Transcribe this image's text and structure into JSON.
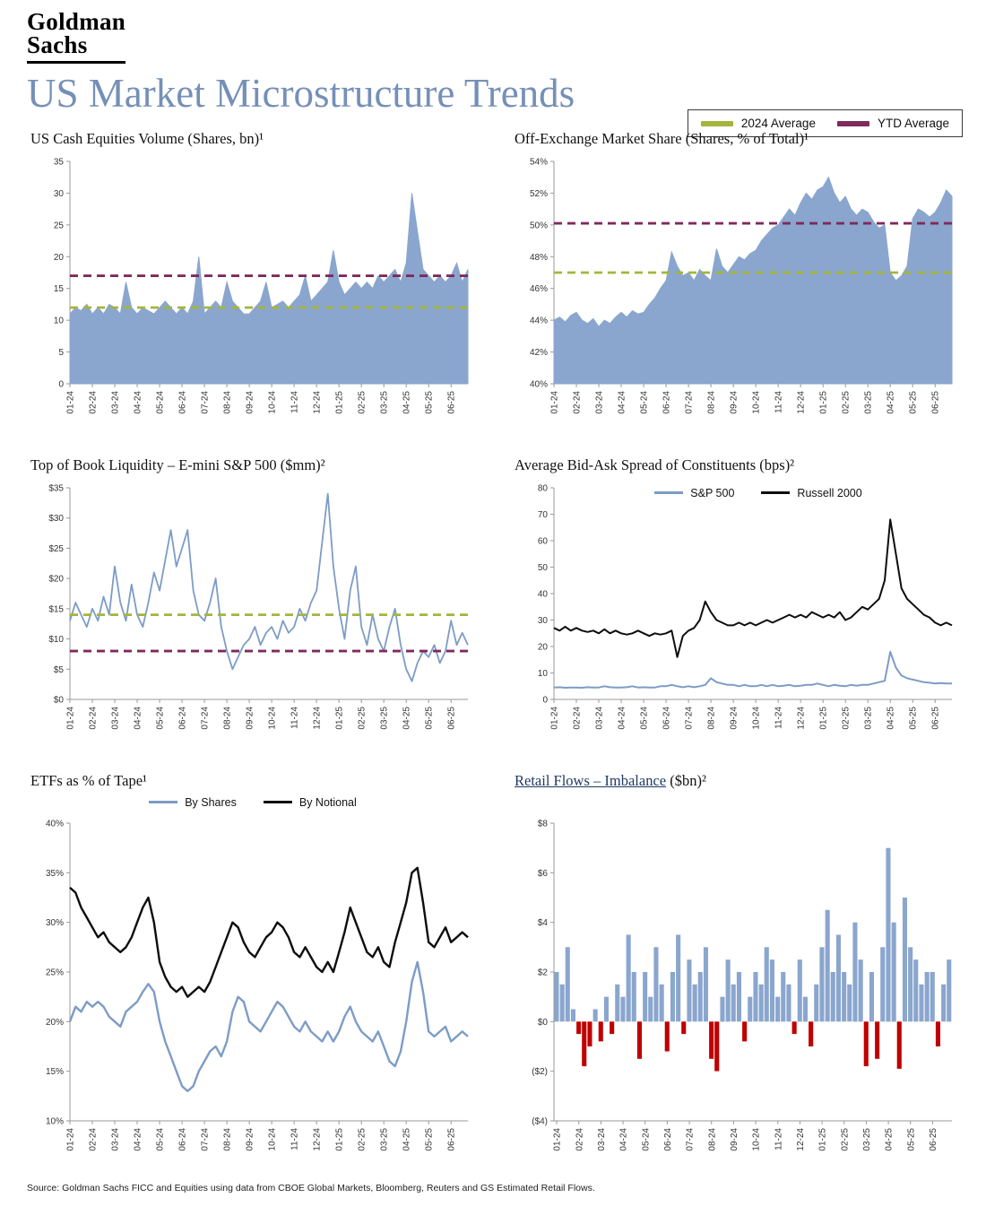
{
  "brand": {
    "line1": "Goldman",
    "line2": "Sachs"
  },
  "page_title": "US Market Microstructure Trends",
  "legend": {
    "items": [
      {
        "label": "2024 Average",
        "color": "#a4b53c"
      },
      {
        "label": "YTD Average",
        "color": "#7e2a5b"
      }
    ]
  },
  "source": "Source: Goldman Sachs FICC and Equities using data from CBOE Global Markets, Bloomberg, Reuters and GS Estimated Retail Flows.",
  "months": [
    "01-24",
    "02-24",
    "03-24",
    "04-24",
    "05-24",
    "06-24",
    "07-24",
    "08-24",
    "09-24",
    "10-24",
    "11-24",
    "12-24",
    "01-25",
    "02-25",
    "03-25",
    "04-25",
    "05-25",
    "06-25"
  ],
  "chart_data": [
    {
      "type": "area",
      "title": "US Cash Equities Volume (Shares, bn)¹",
      "ylim": [
        0,
        35
      ],
      "yticks": [
        0,
        5,
        10,
        15,
        20,
        25,
        30,
        35
      ],
      "ytick_labels": [
        "0",
        "5",
        "10",
        "15",
        "20",
        "25",
        "30",
        "35"
      ],
      "ref_lines": [
        {
          "name": "2024 Average",
          "value": 12,
          "color": "#a4b53c"
        },
        {
          "name": "YTD Average",
          "value": 17,
          "color": "#7e2a5b"
        }
      ],
      "series": [
        {
          "name": "US Cash Equities Volume",
          "color": "#8aa6ce",
          "values": [
            11,
            12,
            11.5,
            12.5,
            11,
            12,
            11,
            12.5,
            12,
            11,
            16,
            12,
            11,
            12,
            11.5,
            11,
            12,
            13,
            12,
            11,
            12,
            11,
            13,
            20,
            11,
            12,
            13,
            12,
            16,
            13,
            12,
            11,
            11,
            12,
            13,
            16,
            12,
            12.5,
            13,
            12,
            13,
            14,
            17,
            13,
            14,
            15,
            16,
            21,
            16,
            14,
            15,
            16,
            15,
            16,
            15,
            17,
            16,
            17,
            18,
            16,
            19,
            30,
            24,
            18,
            17,
            16,
            17,
            16,
            17,
            19,
            16,
            18
          ]
        }
      ]
    },
    {
      "type": "area",
      "title": "Off-Exchange Market Share (Shares, % of Total)¹",
      "ylim": [
        40,
        54
      ],
      "yticks": [
        40,
        42,
        44,
        46,
        48,
        50,
        52,
        54
      ],
      "ytick_labels": [
        "40%",
        "42%",
        "44%",
        "46%",
        "48%",
        "50%",
        "52%",
        "54%"
      ],
      "ref_lines": [
        {
          "name": "2024 Average",
          "value": 47,
          "color": "#a4b53c"
        },
        {
          "name": "YTD Average",
          "value": 50.1,
          "color": "#7e2a5b"
        }
      ],
      "series": [
        {
          "name": "Off-Exchange Market Share",
          "color": "#8aa6ce",
          "values": [
            44,
            44.2,
            43.9,
            44.3,
            44.5,
            44,
            43.8,
            44.1,
            43.6,
            44,
            43.8,
            44.2,
            44.5,
            44.2,
            44.6,
            44.4,
            44.5,
            45,
            45.4,
            46,
            46.5,
            48.3,
            47.4,
            46.8,
            47,
            46.5,
            47.2,
            46.8,
            46.5,
            48.5,
            47.4,
            47,
            47.5,
            48,
            47.8,
            48.2,
            48.4,
            49,
            49.4,
            49.8,
            50,
            50.5,
            51,
            50.6,
            51.4,
            52,
            51.6,
            52.2,
            52.4,
            53,
            52,
            51.4,
            51.8,
            51,
            50.6,
            51,
            50.8,
            50.2,
            49.8,
            50,
            47,
            46.5,
            46.8,
            47.4,
            50.4,
            51,
            50.8,
            50.5,
            50.8,
            51.4,
            52.2,
            51.8
          ]
        }
      ]
    },
    {
      "type": "line",
      "title": "Top of Book Liquidity – E-mini S&P 500 ($mm)²",
      "ylim": [
        0,
        35
      ],
      "yticks": [
        0,
        5,
        10,
        15,
        20,
        25,
        30,
        35
      ],
      "ytick_labels": [
        "$0",
        "$5",
        "$10",
        "$15",
        "$20",
        "$25",
        "$30",
        "$35"
      ],
      "ref_lines": [
        {
          "name": "2024 Average",
          "value": 14,
          "color": "#a4b53c"
        },
        {
          "name": "YTD Average",
          "value": 8,
          "color": "#7e2a5b"
        }
      ],
      "series": [
        {
          "name": "E-mini S&P 500 Top of Book",
          "color": "#7d9cc6",
          "width": 1.8,
          "values": [
            13,
            16,
            14,
            12,
            15,
            13,
            17,
            14,
            22,
            16,
            13,
            19,
            14,
            12,
            16,
            21,
            18,
            23,
            28,
            22,
            25,
            28,
            18,
            14,
            13,
            16,
            20,
            12,
            8,
            5,
            7,
            9,
            10,
            12,
            9,
            11,
            12,
            10,
            13,
            11,
            12,
            15,
            13,
            16,
            18,
            26,
            34,
            22,
            15,
            10,
            18,
            22,
            12,
            9,
            14,
            10,
            8,
            12,
            15,
            9,
            5,
            3,
            6,
            8,
            7,
            9,
            6,
            8,
            13,
            9,
            11,
            9
          ]
        }
      ]
    },
    {
      "type": "line",
      "title": "Average Bid-Ask Spread of Constituents (bps)²",
      "ylim": [
        0,
        80
      ],
      "yticks": [
        0,
        10,
        20,
        30,
        40,
        50,
        60,
        70,
        80
      ],
      "ytick_labels": [
        "0",
        "10",
        "20",
        "30",
        "40",
        "50",
        "60",
        "70",
        "80"
      ],
      "ref_lines": [],
      "series": [
        {
          "name": "S&P 500",
          "color": "#7d9cc6",
          "width": 2,
          "values": [
            4.5,
            4.6,
            4.4,
            4.5,
            4.5,
            4.4,
            4.6,
            4.5,
            4.5,
            5,
            4.6,
            4.5,
            4.5,
            4.6,
            5,
            4.5,
            4.6,
            4.5,
            4.5,
            5,
            5,
            5.5,
            5,
            4.6,
            5,
            4.6,
            5,
            5.5,
            8,
            6.5,
            6,
            5.5,
            5.5,
            5,
            5.5,
            5,
            5,
            5.5,
            5,
            5.5,
            5,
            5.2,
            5.5,
            5,
            5.2,
            5.5,
            5.5,
            6,
            5.5,
            5,
            5.5,
            5.2,
            5,
            5.5,
            5.2,
            5.5,
            5.5,
            6,
            6.5,
            7,
            18,
            12,
            9,
            8,
            7.5,
            7,
            6.5,
            6.3,
            6,
            6.2,
            6,
            6
          ]
        },
        {
          "name": "Russell 2000",
          "color": "#0d0d0d",
          "width": 2,
          "values": [
            27,
            26,
            27.5,
            26,
            27,
            26,
            25.5,
            26,
            25,
            26.5,
            25,
            26,
            25,
            24.5,
            25,
            26,
            25,
            24,
            25,
            24.5,
            25,
            26,
            16,
            24,
            26,
            27,
            30,
            37,
            33,
            30,
            29,
            28,
            28,
            29,
            28,
            29,
            28,
            29,
            30,
            29,
            30,
            31,
            32,
            31,
            32,
            31,
            33,
            32,
            31,
            32,
            31,
            33,
            30,
            31,
            33,
            35,
            34,
            36,
            38,
            45,
            68,
            55,
            42,
            38,
            36,
            34,
            32,
            31,
            29,
            28,
            29,
            28
          ]
        }
      ]
    },
    {
      "type": "line",
      "title": "ETFs as % of Tape¹",
      "ylim": [
        10,
        40
      ],
      "yticks": [
        10,
        15,
        20,
        25,
        30,
        35,
        40
      ],
      "ytick_labels": [
        "10%",
        "15%",
        "20%",
        "25%",
        "30%",
        "35%",
        "40%"
      ],
      "ref_lines": [],
      "series": [
        {
          "name": "By Shares",
          "color": "#7d9cc6",
          "width": 2.4,
          "values": [
            20,
            21.5,
            21,
            22,
            21.5,
            22,
            21.5,
            20.5,
            20,
            19.5,
            21,
            21.5,
            22,
            23,
            23.8,
            23,
            20,
            18,
            16.5,
            15,
            13.5,
            13,
            13.5,
            15,
            16,
            17,
            17.5,
            16.5,
            18,
            21,
            22.5,
            22,
            20,
            19.5,
            19,
            20,
            21,
            22,
            21.5,
            20.5,
            19.5,
            19,
            20,
            19,
            18.5,
            18,
            19,
            18,
            19,
            20.5,
            21.5,
            20,
            19,
            18.5,
            18,
            19,
            17.5,
            16,
            15.5,
            17,
            20,
            24,
            26,
            23,
            19,
            18.5,
            19,
            19.5,
            18,
            18.5,
            19,
            18.5
          ]
        },
        {
          "name": "By Notional",
          "color": "#0d0d0d",
          "width": 2.4,
          "values": [
            33.5,
            33,
            31.5,
            30.5,
            29.5,
            28.5,
            29,
            28,
            27.5,
            27,
            27.5,
            28.5,
            30,
            31.5,
            32.5,
            30,
            26,
            24.5,
            23.5,
            23,
            23.5,
            22.5,
            23,
            23.5,
            23,
            24,
            25.5,
            27,
            28.5,
            30,
            29.5,
            28,
            27,
            26.5,
            27.5,
            28.5,
            29,
            30,
            29.5,
            28.5,
            27,
            26.5,
            27.5,
            26.5,
            25.5,
            25,
            26,
            25,
            27,
            29,
            31.5,
            30,
            28.5,
            27,
            26.5,
            27.5,
            26,
            25.5,
            28,
            30,
            32,
            35,
            35.5,
            32,
            28,
            27.5,
            28.5,
            29.5,
            28,
            28.5,
            29,
            28.5
          ]
        }
      ]
    },
    {
      "type": "bar",
      "title_main": "Retail Flows – Imbalance",
      "title_suffix": " ($bn)²",
      "ylim": [
        -4,
        8
      ],
      "yticks": [
        -4,
        -2,
        0,
        2,
        4,
        6,
        8
      ],
      "ytick_labels": [
        "($4)",
        "($2)",
        "$0",
        "$2",
        "$4",
        "$6",
        "$8"
      ],
      "ref_lines": [],
      "colors": {
        "positive": "#8aa6ce",
        "negative": "#c00000"
      },
      "values": [
        2,
        1.5,
        3,
        0.5,
        -0.5,
        -1.8,
        -1,
        0.5,
        -0.8,
        1,
        -0.5,
        1.5,
        1,
        3.5,
        2,
        -1.5,
        2,
        1,
        3,
        1.5,
        -1.2,
        2,
        3.5,
        -0.5,
        2.5,
        1.5,
        2,
        3,
        -1.5,
        -2,
        1,
        2.5,
        1.5,
        2,
        -0.8,
        1,
        2,
        1.5,
        3,
        2.5,
        1,
        2,
        1.5,
        -0.5,
        2.5,
        1,
        -1,
        1.5,
        3,
        4.5,
        2,
        3.5,
        2,
        1.5,
        4,
        2.5,
        -1.8,
        2,
        -1.5,
        3,
        7,
        4,
        -1.9,
        5,
        3,
        2.5,
        1.5,
        2,
        2,
        -1,
        1.5,
        2.5
      ]
    }
  ]
}
